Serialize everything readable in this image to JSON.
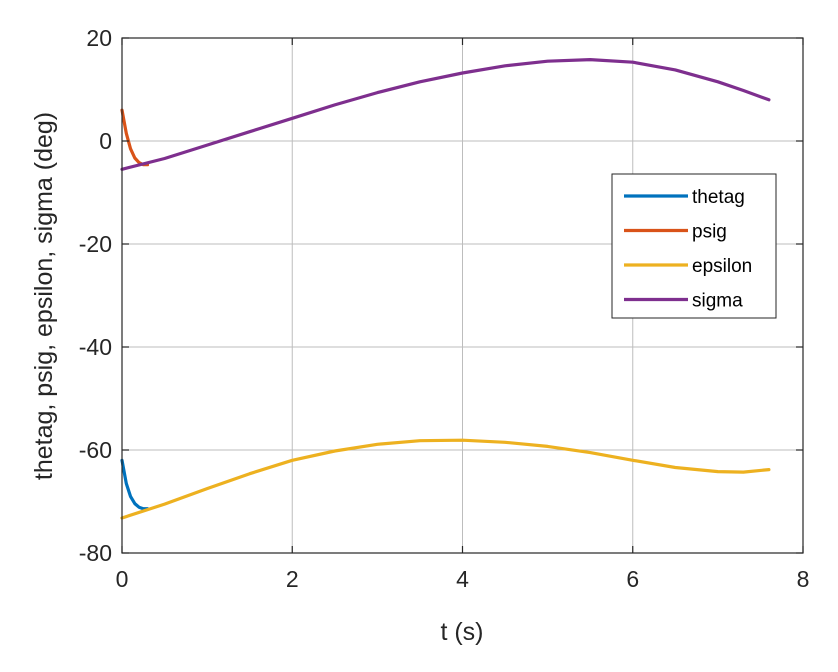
{
  "chart_data": {
    "type": "line",
    "title": "",
    "xlabel": "t (s)",
    "ylabel": "thetag, psig, epsilon, sigma (deg)",
    "xlim": [
      0,
      8
    ],
    "ylim": [
      -80,
      20
    ],
    "xticks": [
      "0",
      "2",
      "4",
      "6",
      "8"
    ],
    "yticks": [
      "20",
      "0",
      "-20",
      "-40",
      "-60",
      "-80"
    ],
    "grid": true,
    "legend_position": "right-inside",
    "series": [
      {
        "name": "thetag",
        "color": "#0072BD",
        "x": [
          0,
          0.05,
          0.1,
          0.15,
          0.2,
          0.25,
          0.3
        ],
        "y": [
          -62,
          -66.5,
          -69,
          -70.4,
          -71.1,
          -71.4,
          -71.4
        ]
      },
      {
        "name": "psig",
        "color": "#D95319",
        "x": [
          0,
          0.05,
          0.1,
          0.15,
          0.2,
          0.25,
          0.3
        ],
        "y": [
          6,
          1.5,
          -1.5,
          -3.3,
          -4.2,
          -4.6,
          -4.6
        ]
      },
      {
        "name": "epsilon",
        "color": "#EDB120",
        "x": [
          0,
          0.5,
          1,
          1.5,
          2,
          2.5,
          3,
          3.5,
          4,
          4.5,
          5,
          5.5,
          6,
          6.5,
          7,
          7.3,
          7.6
        ],
        "y": [
          -73.2,
          -70.5,
          -67.5,
          -64.6,
          -62,
          -60.2,
          -58.9,
          -58.2,
          -58.1,
          -58.5,
          -59.3,
          -60.5,
          -62,
          -63.4,
          -64.2,
          -64.3,
          -63.8
        ]
      },
      {
        "name": "sigma",
        "color": "#7E2F8E",
        "x": [
          0,
          0.5,
          1,
          1.5,
          2,
          2.5,
          3,
          3.5,
          4,
          4.5,
          5,
          5.5,
          6,
          6.5,
          7,
          7.3,
          7.6
        ],
        "y": [
          -5.5,
          -3.4,
          -0.8,
          1.8,
          4.4,
          7,
          9.4,
          11.5,
          13.2,
          14.6,
          15.5,
          15.8,
          15.3,
          13.8,
          11.5,
          9.8,
          8
        ]
      }
    ]
  }
}
